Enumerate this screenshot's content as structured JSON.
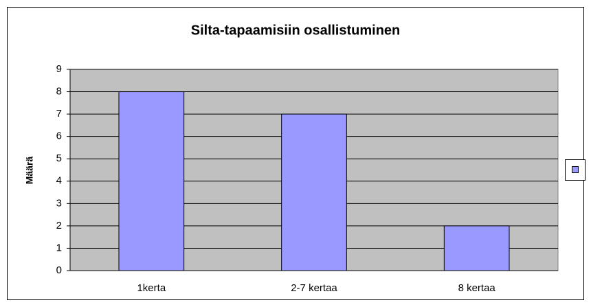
{
  "chart_data": {
    "type": "bar",
    "title": "Silta-tapaamisiin osallistuminen",
    "y_label": "Määrä",
    "categories": [
      "1kerta",
      "2-7 kertaa",
      "8 kertaa"
    ],
    "values": [
      8,
      7,
      2
    ],
    "color": "#9999ff",
    "ylim": [
      0,
      9
    ],
    "yticks": [
      0,
      1,
      2,
      3,
      4,
      5,
      6,
      7,
      8,
      9
    ],
    "grid": true
  }
}
